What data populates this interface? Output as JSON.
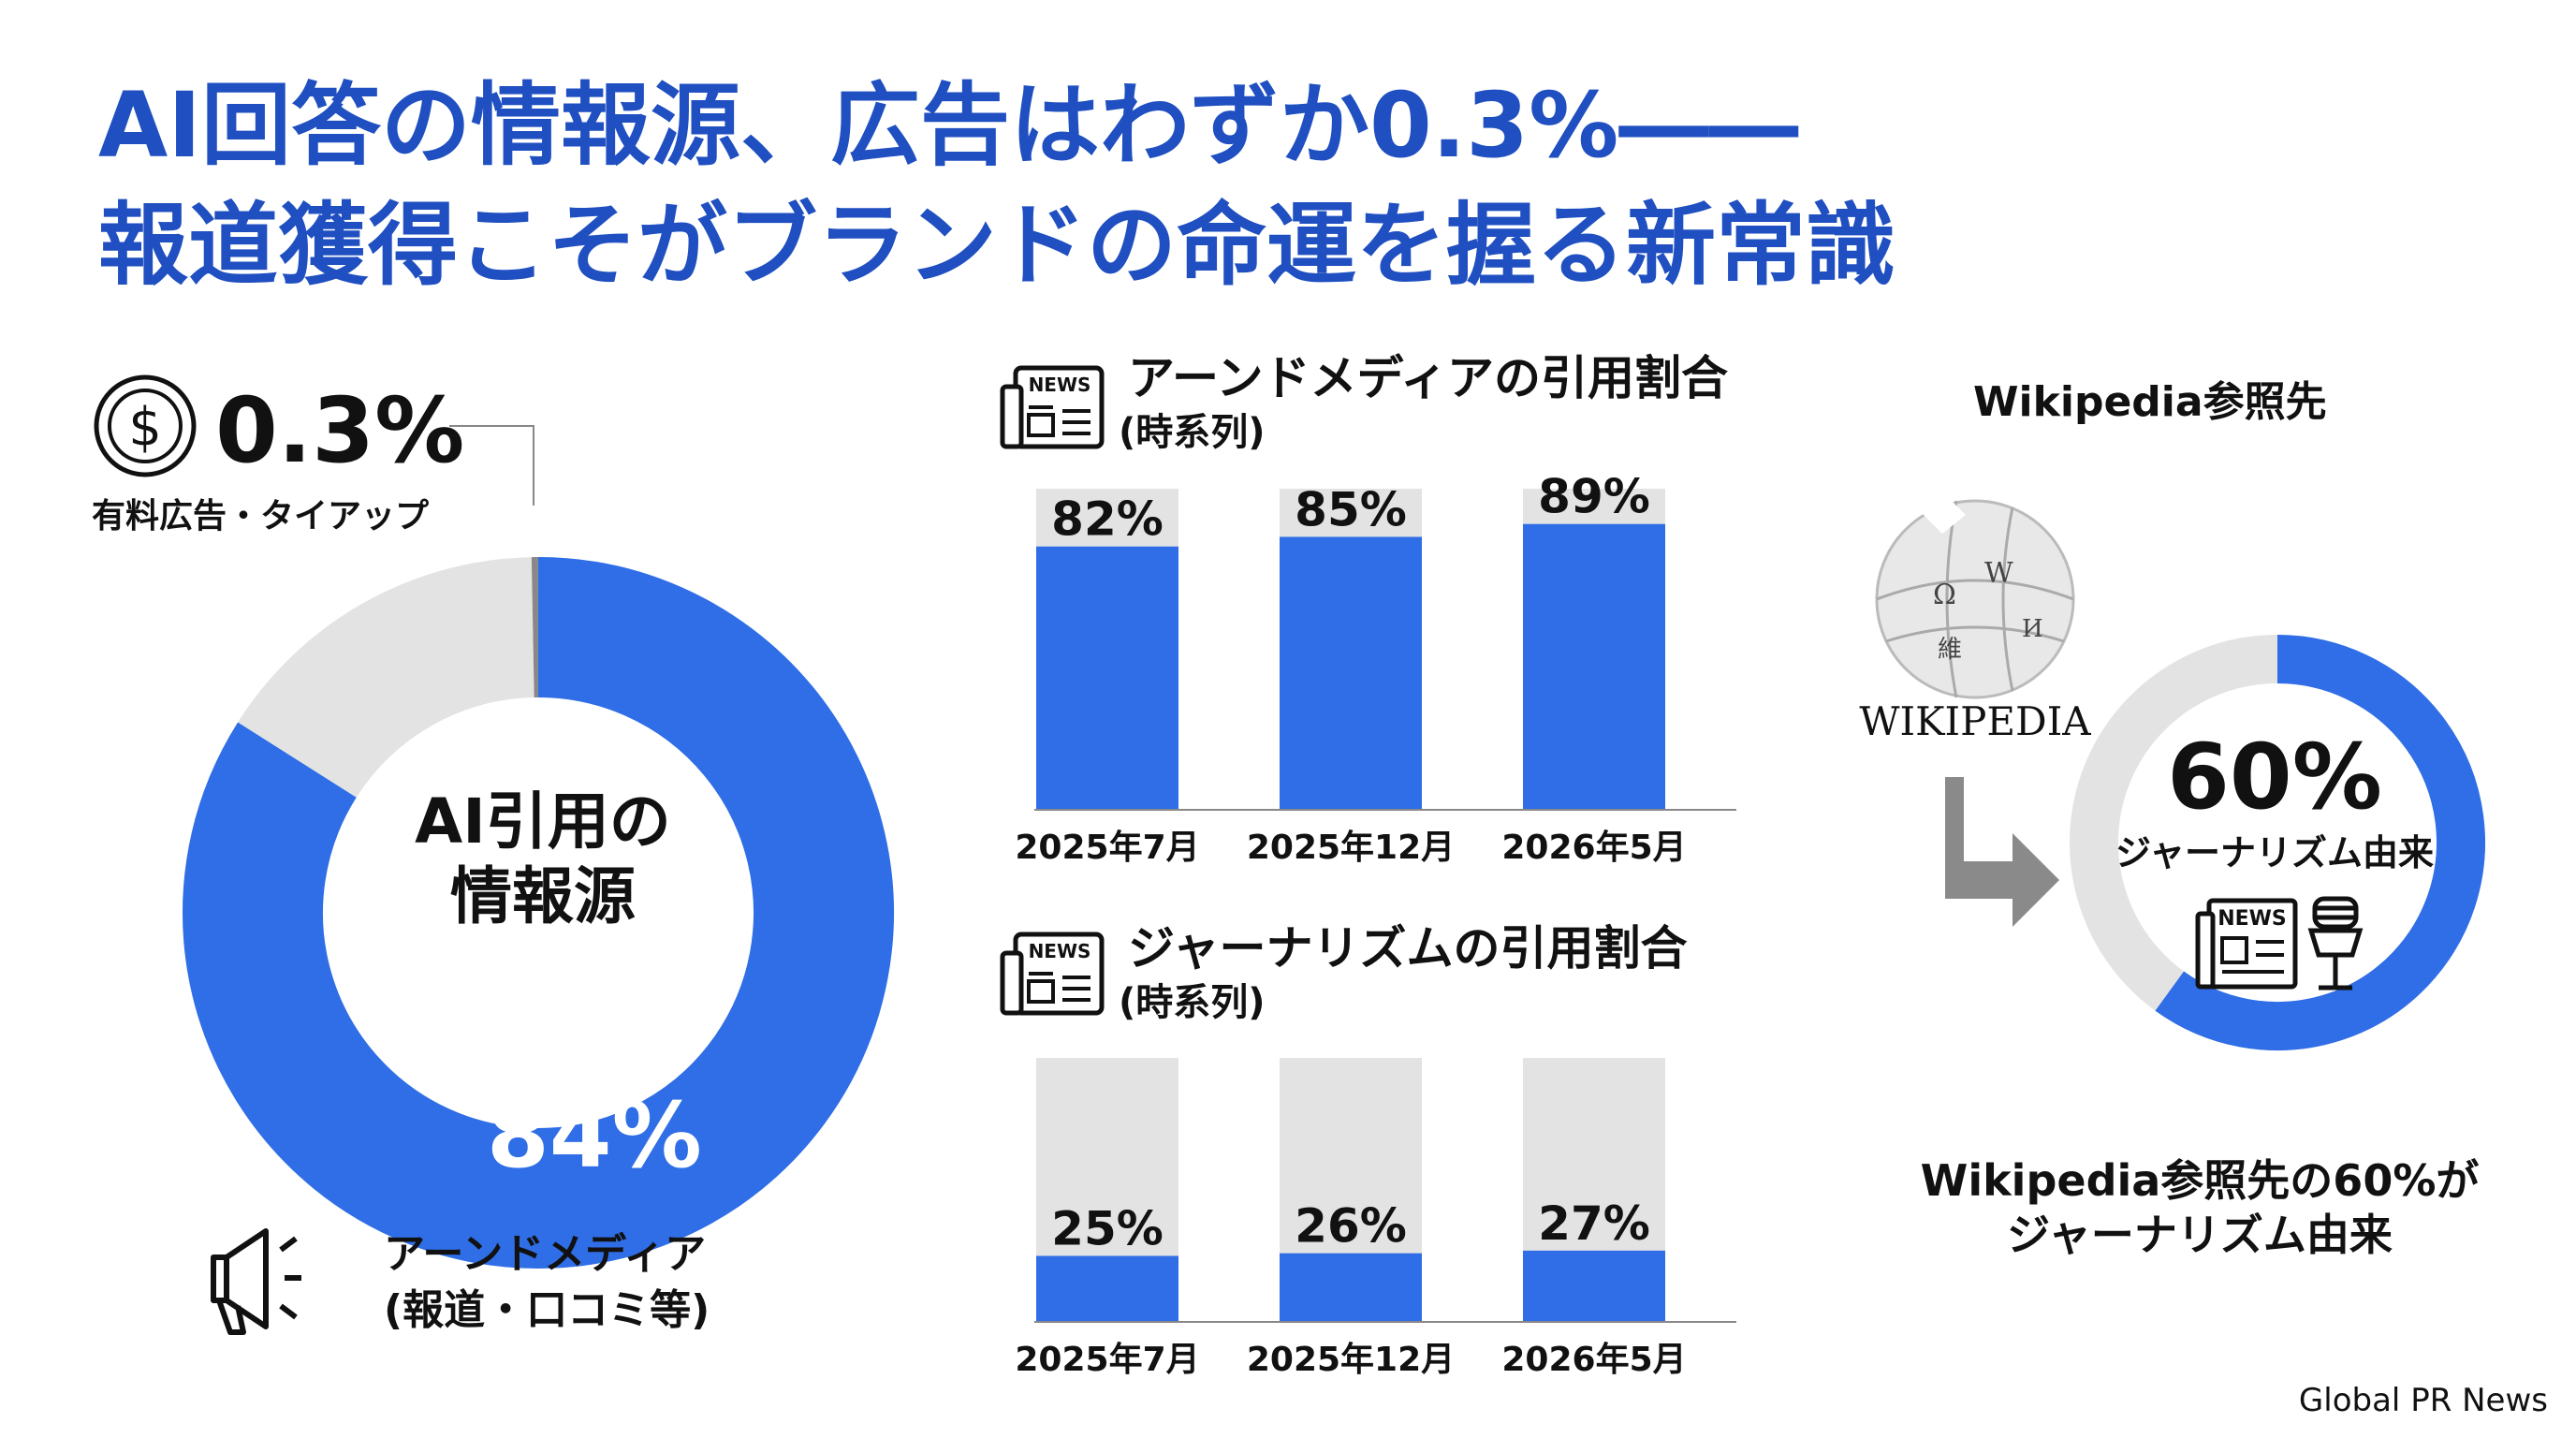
{
  "title": {
    "line1": "AI回答の情報源、広告はわずか0.3%――",
    "line2": "報道獲得こそがブランドの命運を握る新常識"
  },
  "donut": {
    "center_line1": "AI引用の",
    "center_line2": "情報源",
    "paid_pct_label": "0.3%",
    "paid_caption": "有料広告・タイアップ",
    "earned_pct_label": "84%",
    "earned_caption_line1": "アーンドメディア",
    "earned_caption_line2": "(報道・口コミ等)"
  },
  "panel1": {
    "title": "アーンドメディアの引用割合",
    "subtitle": "(時系列)",
    "icon_text": "NEWS"
  },
  "panel2": {
    "title": "ジャーナリズムの引用割合",
    "subtitle": "(時系列)",
    "icon_text": "NEWS"
  },
  "wiki": {
    "header": "Wikipedia参照先",
    "logo_text": "WIKIPEDIA",
    "ring_value_label": "60%",
    "ring_caption": "ジャーナリズム由来",
    "news_text": "NEWS",
    "bottom_line1": "Wikipedia参照先の60%が",
    "bottom_line2": "ジャーナリズム由来"
  },
  "footer": "Global PR News",
  "colors": {
    "accent": "#2f6ee6",
    "track": "#e3e3e3",
    "title": "#1f4fc0",
    "paid": "#888888"
  },
  "chart_data": [
    {
      "type": "pie",
      "title": "AI引用の情報源",
      "categories": [
        "アーンドメディア(報道・口コミ等)",
        "",
        "有料広告・タイアップ"
      ],
      "values": [
        84,
        15.7,
        0.3
      ]
    },
    {
      "type": "bar",
      "title": "アーンドメディアの引用割合(時系列)",
      "categories": [
        "2025年7月",
        "2025年12月",
        "2026年5月"
      ],
      "values": [
        82,
        85,
        89
      ],
      "ylim": [
        0,
        100
      ]
    },
    {
      "type": "bar",
      "title": "ジャーナリズムの引用割合(時系列)",
      "categories": [
        "2025年7月",
        "2025年12月",
        "2026年5月"
      ],
      "values": [
        25,
        26,
        27
      ],
      "ylim": [
        0,
        100
      ]
    },
    {
      "type": "pie",
      "title": "Wikipedia参照先",
      "categories": [
        "ジャーナリズム由来",
        ""
      ],
      "values": [
        60,
        40
      ]
    }
  ]
}
